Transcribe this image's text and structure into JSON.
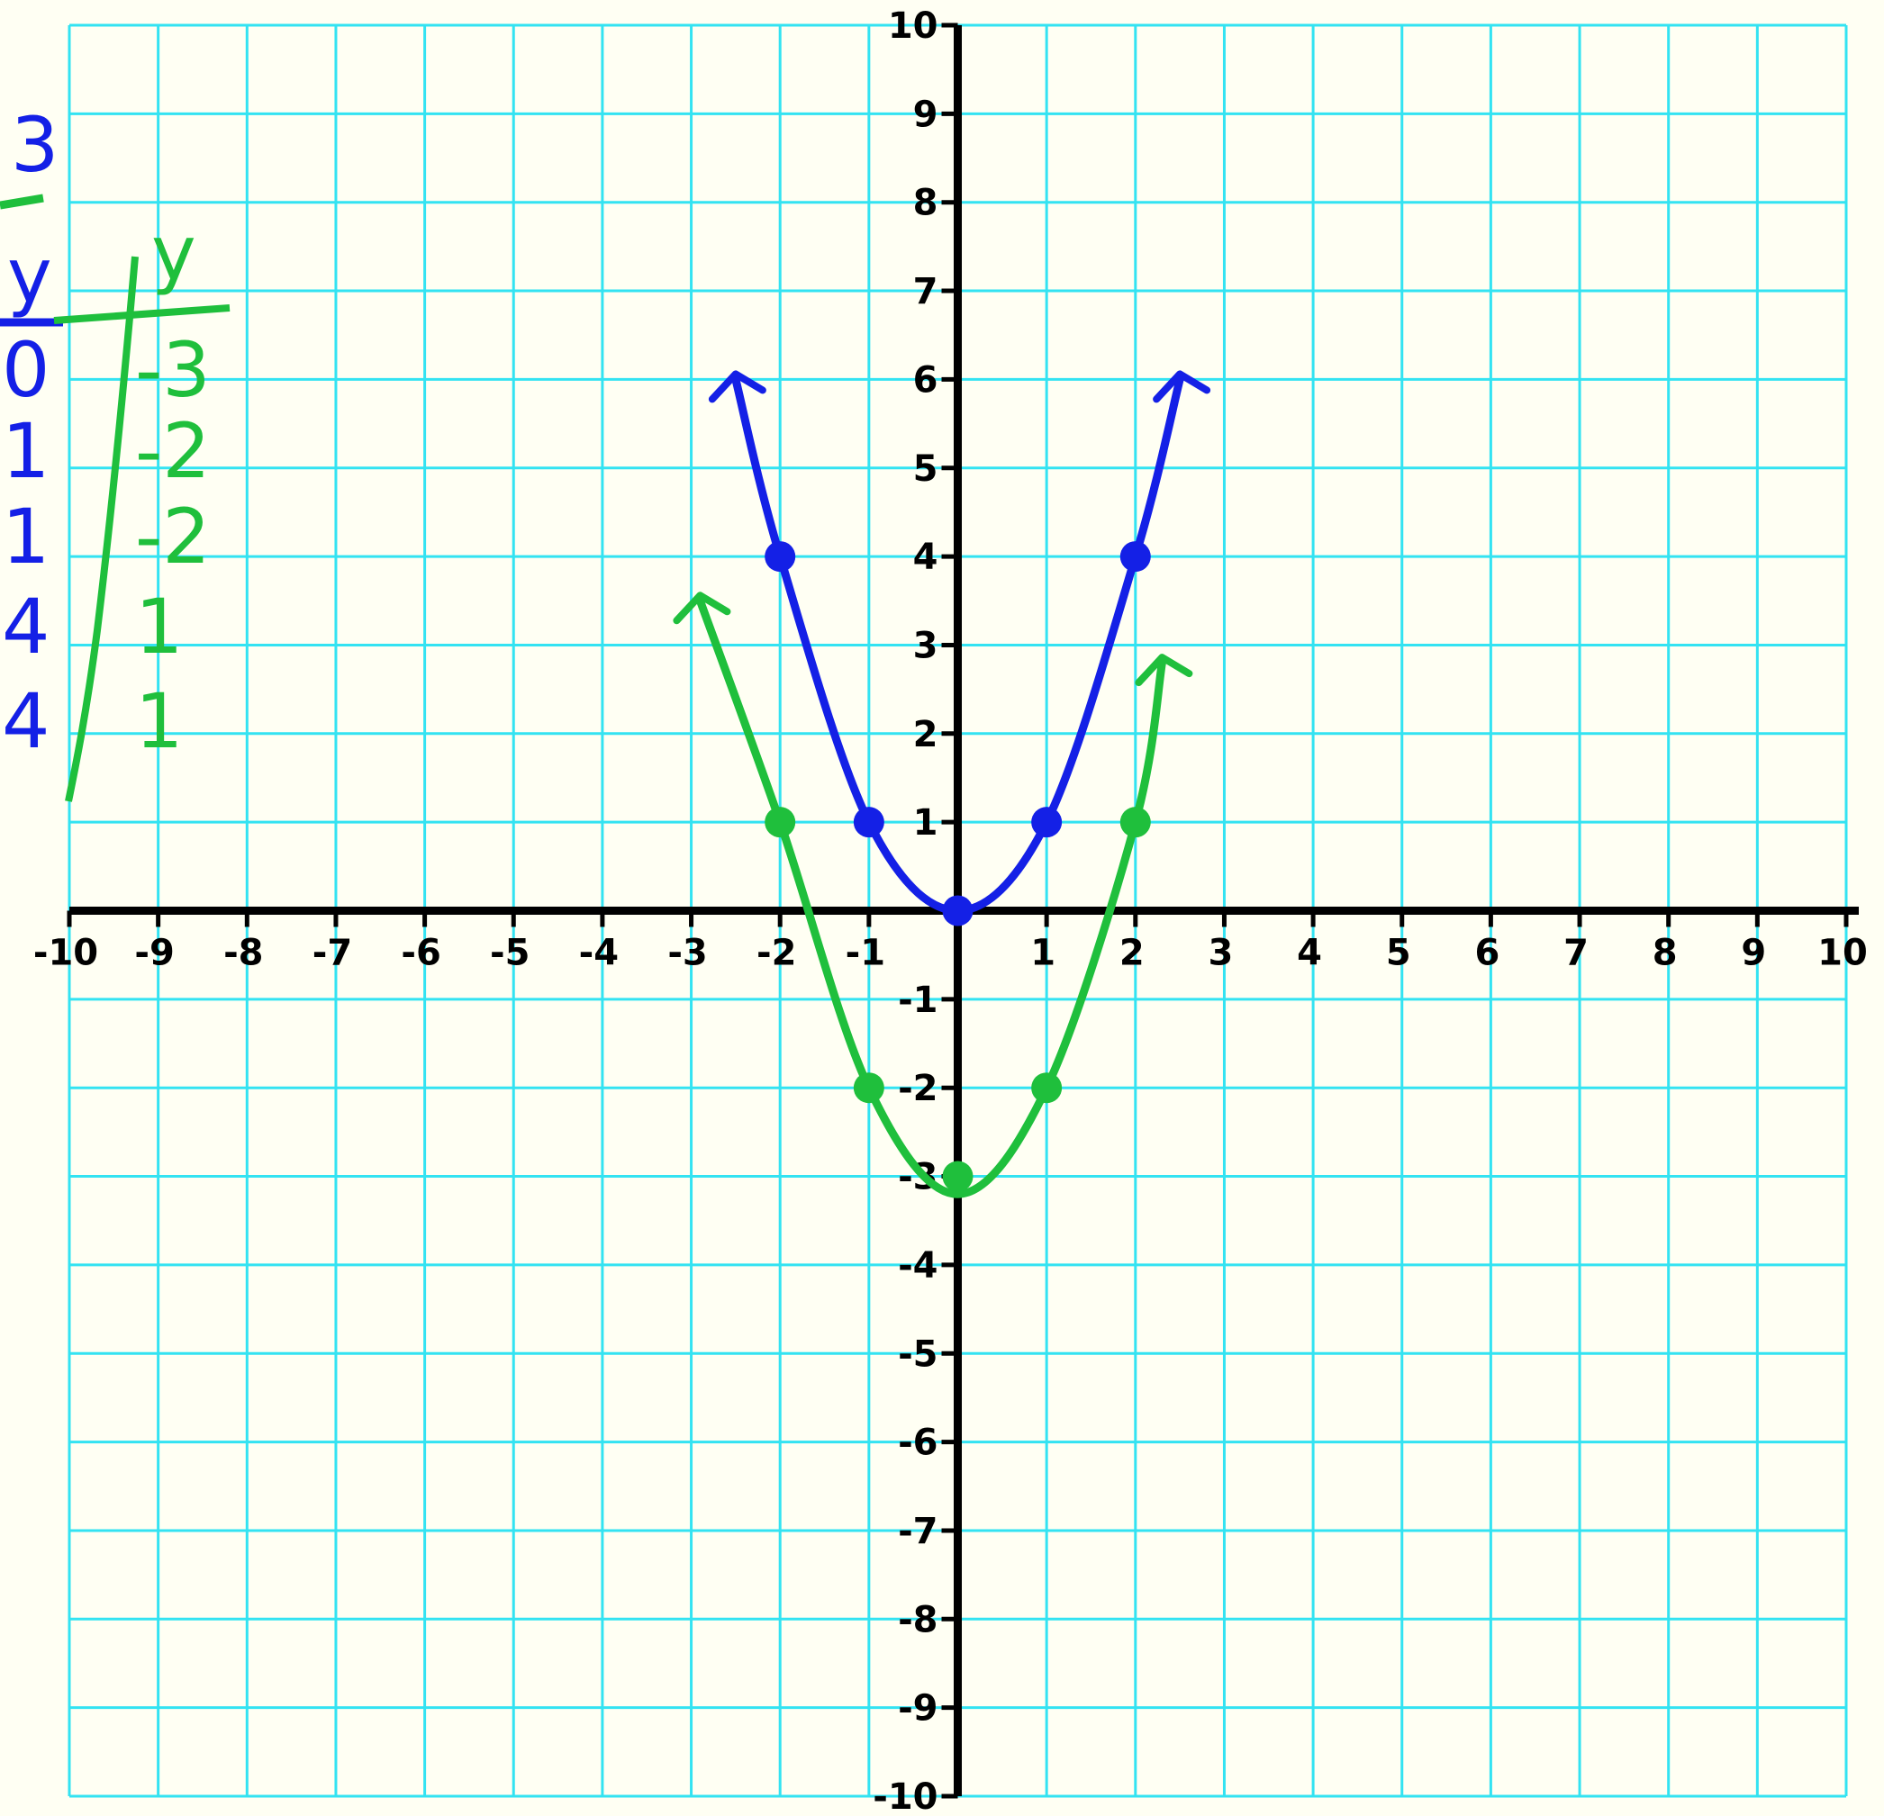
{
  "colors": {
    "background": "#fffff3",
    "grid": "#33e3f2",
    "axis": "#000000",
    "blue": "#1420e6",
    "green": "#1fbf3c"
  },
  "chart_data": {
    "type": "line",
    "xlim": [
      -10,
      10
    ],
    "ylim": [
      -10,
      10
    ],
    "grid": true,
    "x_tick_labels": [
      "-10",
      "-9",
      "-8",
      "-7",
      "-6",
      "-5",
      "-4",
      "-3",
      "-2",
      "-1",
      "1",
      "2",
      "3",
      "4",
      "5",
      "6",
      "7",
      "8",
      "9",
      "10"
    ],
    "y_tick_labels": [
      "10",
      "9",
      "8",
      "7",
      "6",
      "5",
      "4",
      "3",
      "2",
      "1",
      "-1",
      "-2",
      "-3",
      "-4",
      "-5",
      "-6",
      "-7",
      "-8",
      "-9",
      "-10"
    ],
    "series": [
      {
        "color": "blue",
        "points": [
          [
            -2,
            4
          ],
          [
            -1,
            1
          ],
          [
            0,
            0
          ],
          [
            1,
            1
          ],
          [
            2,
            4
          ]
        ],
        "curve": [
          [
            -2.5,
            6
          ],
          [
            -2,
            4
          ],
          [
            -1,
            1
          ],
          [
            0,
            0
          ],
          [
            1,
            1
          ],
          [
            2,
            4
          ],
          [
            2.5,
            6
          ]
        ]
      },
      {
        "color": "green",
        "points": [
          [
            -2,
            1
          ],
          [
            -1,
            -2
          ],
          [
            0,
            -3
          ],
          [
            1,
            -2
          ],
          [
            2,
            1
          ]
        ],
        "curve": [
          [
            -2.9,
            3.5
          ],
          [
            -2,
            1
          ],
          [
            -1,
            -2
          ],
          [
            0,
            -3.2
          ],
          [
            1,
            -2
          ],
          [
            2,
            1
          ],
          [
            2.3,
            2.8
          ]
        ]
      }
    ],
    "handwritten_table": {
      "top_label": "3",
      "blue_header": "y",
      "green_header": "y",
      "blue_values": [
        "0",
        "1",
        "1",
        "4",
        "4"
      ],
      "green_values": [
        "-3",
        "-2",
        "-2",
        "1",
        "1"
      ]
    }
  }
}
